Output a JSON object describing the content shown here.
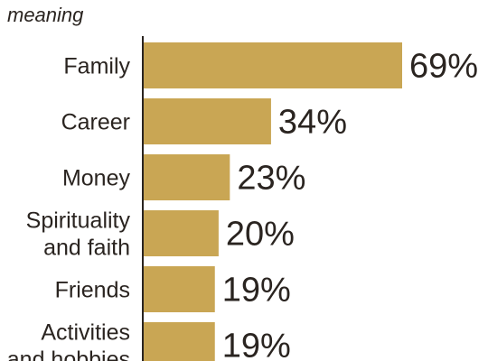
{
  "subtitle": "meaning",
  "colors": {
    "bar": "#c9a654",
    "axis": "#2a2420",
    "text": "#2a2420"
  },
  "chart_data": {
    "type": "bar",
    "orientation": "horizontal",
    "title": "",
    "subtitle": "meaning",
    "xlabel": "",
    "ylabel": "",
    "categories": [
      [
        "Family"
      ],
      [
        "Career"
      ],
      [
        "Money"
      ],
      [
        "Spirituality",
        "and faith"
      ],
      [
        "Friends"
      ],
      [
        "Activities",
        "and hobbies"
      ]
    ],
    "values": [
      69,
      34,
      23,
      20,
      19,
      19
    ],
    "value_labels": [
      "69%",
      "34%",
      "23%",
      "20%",
      "19%",
      "19%"
    ],
    "xlim": [
      0,
      69
    ],
    "grid": false,
    "legend": "none"
  }
}
